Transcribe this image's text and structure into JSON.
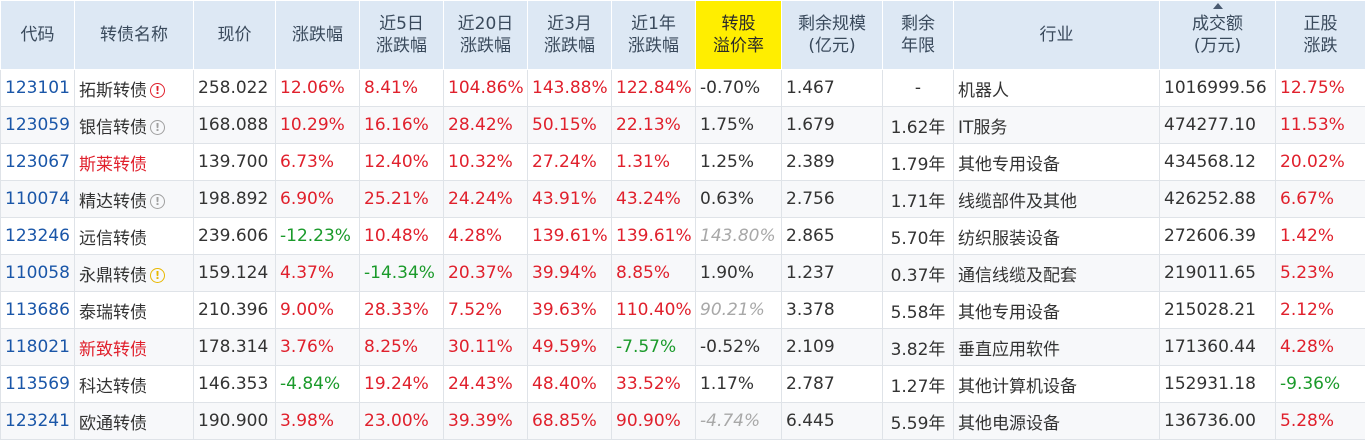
{
  "headers": [
    {
      "l1": "代码",
      "l2": ""
    },
    {
      "l1": "转债名称",
      "l2": ""
    },
    {
      "l1": "现价",
      "l2": ""
    },
    {
      "l1": "涨跌幅",
      "l2": ""
    },
    {
      "l1": "近5日",
      "l2": "涨跌幅"
    },
    {
      "l1": "近20日",
      "l2": "涨跌幅"
    },
    {
      "l1": "近3月",
      "l2": "涨跌幅"
    },
    {
      "l1": "近1年",
      "l2": "涨跌幅"
    },
    {
      "l1": "转股",
      "l2": "溢价率"
    },
    {
      "l1": "剩余规模",
      "l2": "(亿元)"
    },
    {
      "l1": "剩余",
      "l2": "年限"
    },
    {
      "l1": "行业",
      "l2": ""
    },
    {
      "l1": "成交额",
      "l2": "(万元)"
    },
    {
      "l1": "正股",
      "l2": "涨跌"
    }
  ],
  "badge_glyph": "!",
  "rows": [
    {
      "code": "123101",
      "name": "拓斯转债",
      "badge": "red",
      "name_color": "normal",
      "price": "258.022",
      "chg": "12.06%",
      "d5": "8.41%",
      "d20": "104.86%",
      "m3": "143.88%",
      "y1": "122.84%",
      "premium": "-0.70%",
      "premium_style": "normal",
      "scale": "1.467",
      "years": "-",
      "industry": "机器人",
      "turnover": "1016999.56",
      "stock": "12.75%"
    },
    {
      "code": "123059",
      "name": "银信转债",
      "badge": "gray",
      "name_color": "normal",
      "price": "168.088",
      "chg": "10.29%",
      "d5": "16.16%",
      "d20": "28.42%",
      "m3": "50.15%",
      "y1": "22.13%",
      "premium": "1.75%",
      "premium_style": "normal",
      "scale": "1.679",
      "years": "1.62年",
      "industry": "IT服务",
      "turnover": "474277.10",
      "stock": "11.53%"
    },
    {
      "code": "123067",
      "name": "斯莱转债",
      "badge": "",
      "name_color": "red",
      "price": "139.700",
      "chg": "6.73%",
      "d5": "12.40%",
      "d20": "10.32%",
      "m3": "27.24%",
      "y1": "1.31%",
      "premium": "1.25%",
      "premium_style": "normal",
      "scale": "2.389",
      "years": "1.79年",
      "industry": "其他专用设备",
      "turnover": "434568.12",
      "stock": "20.02%"
    },
    {
      "code": "110074",
      "name": "精达转债",
      "badge": "gray",
      "name_color": "normal",
      "price": "198.892",
      "chg": "6.90%",
      "d5": "25.21%",
      "d20": "24.24%",
      "m3": "43.91%",
      "y1": "43.24%",
      "premium": "0.63%",
      "premium_style": "normal",
      "scale": "2.756",
      "years": "1.71年",
      "industry": "线缆部件及其他",
      "turnover": "426252.88",
      "stock": "6.67%"
    },
    {
      "code": "123246",
      "name": "远信转债",
      "badge": "",
      "name_color": "normal",
      "price": "239.606",
      "chg": "-12.23%",
      "d5": "10.48%",
      "d20": "4.28%",
      "m3": "139.61%",
      "y1": "139.61%",
      "premium": "143.80%",
      "premium_style": "italic",
      "scale": "2.865",
      "years": "5.70年",
      "industry": "纺织服装设备",
      "turnover": "272606.39",
      "stock": "1.42%"
    },
    {
      "code": "110058",
      "name": "永鼎转债",
      "badge": "yellow",
      "name_color": "normal",
      "price": "159.124",
      "chg": "4.37%",
      "d5": "-14.34%",
      "d20": "20.37%",
      "m3": "39.94%",
      "y1": "8.85%",
      "premium": "1.90%",
      "premium_style": "normal",
      "scale": "1.237",
      "years": "0.37年",
      "industry": "通信线缆及配套",
      "turnover": "219011.65",
      "stock": "5.23%"
    },
    {
      "code": "113686",
      "name": "泰瑞转债",
      "badge": "",
      "name_color": "normal",
      "price": "210.396",
      "chg": "9.00%",
      "d5": "28.33%",
      "d20": "7.52%",
      "m3": "39.63%",
      "y1": "110.40%",
      "premium": "90.21%",
      "premium_style": "italic",
      "scale": "3.378",
      "years": "5.58年",
      "industry": "其他专用设备",
      "turnover": "215028.21",
      "stock": "2.12%"
    },
    {
      "code": "118021",
      "name": "新致转债",
      "badge": "",
      "name_color": "red",
      "price": "178.314",
      "chg": "3.76%",
      "d5": "8.25%",
      "d20": "30.11%",
      "m3": "49.59%",
      "y1": "-7.57%",
      "premium": "-0.52%",
      "premium_style": "normal",
      "scale": "2.109",
      "years": "3.82年",
      "industry": "垂直应用软件",
      "turnover": "171360.44",
      "stock": "4.28%"
    },
    {
      "code": "113569",
      "name": "科达转债",
      "badge": "",
      "name_color": "normal",
      "price": "146.353",
      "chg": "-4.84%",
      "d5": "19.24%",
      "d20": "24.43%",
      "m3": "48.40%",
      "y1": "33.52%",
      "premium": "1.17%",
      "premium_style": "normal",
      "scale": "2.787",
      "years": "1.27年",
      "industry": "其他计算机设备",
      "turnover": "152931.18",
      "stock": "-9.36%"
    },
    {
      "code": "123241",
      "name": "欧通转债",
      "badge": "",
      "name_color": "normal",
      "price": "190.900",
      "chg": "3.98%",
      "d5": "23.00%",
      "d20": "39.39%",
      "m3": "68.85%",
      "y1": "90.90%",
      "premium": "-4.74%",
      "premium_style": "italic",
      "scale": "6.445",
      "years": "5.59年",
      "industry": "其他电源设备",
      "turnover": "136736.00",
      "stock": "5.28%"
    }
  ],
  "colors": {
    "header_bg": "#dde8f4",
    "highlight": "#ffee00",
    "up": "#e0202c",
    "down": "#1a9a2a",
    "code": "#1a56a8",
    "muted": "#a8a8a8"
  }
}
